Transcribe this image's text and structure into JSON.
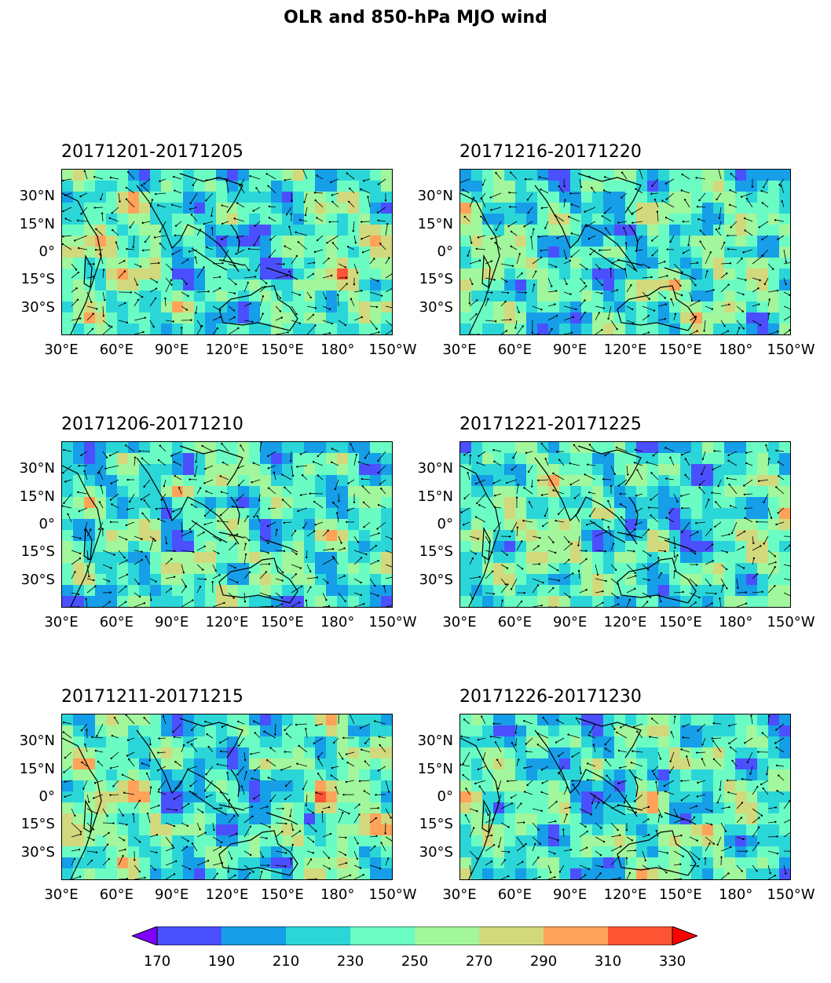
{
  "chart_data": {
    "type": "heatmap",
    "title": "OLR and 850-hPa MJO wind",
    "panels": [
      {
        "label": "20171201-20171205"
      },
      {
        "label": "20171216-20171220"
      },
      {
        "label": "20171206-20171210"
      },
      {
        "label": "20171221-20171225"
      },
      {
        "label": "20171211-20171215"
      },
      {
        "label": "20171226-20171230"
      }
    ],
    "x_ticks": [
      "30°E",
      "60°E",
      "90°E",
      "120°E",
      "150°E",
      "180°",
      "150°W"
    ],
    "y_ticks": [
      "30°N",
      "15°N",
      "0°",
      "15°S",
      "30°S"
    ],
    "lon_range": [
      30,
      210
    ],
    "lat_range": [
      -45,
      45
    ],
    "colorbar": {
      "levels": [
        "170",
        "190",
        "210",
        "230",
        "250",
        "270",
        "290",
        "310",
        "330"
      ],
      "colors": [
        "#4b50ff",
        "#169ee8",
        "#2bd6d8",
        "#6bfcc4",
        "#a2f69c",
        "#d2d97d",
        "#ffa35a",
        "#ff5433"
      ],
      "under_color": "#8000ff",
      "over_color": "#ff0000",
      "extend": "both"
    }
  }
}
